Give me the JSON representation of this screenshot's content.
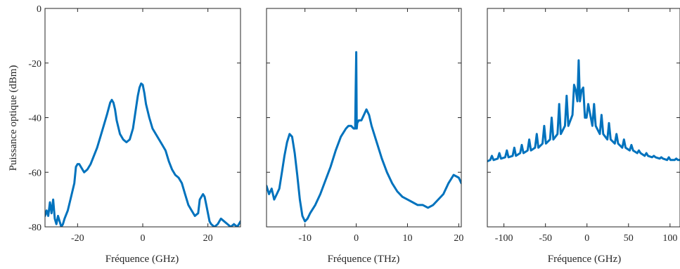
{
  "chart_data": [
    {
      "type": "line",
      "xlabel": "Fréquence (GHz)",
      "ylabel": "Puissance optique (dBm)",
      "xlim": [
        -30,
        30
      ],
      "ylim": [
        -80,
        0
      ],
      "xticks": [
        -20,
        0,
        20
      ],
      "xtick_labels": [
        "-20",
        "0",
        "20"
      ],
      "yticks": [
        -80,
        -60,
        -40,
        -20,
        0
      ],
      "ytick_labels": [
        "-80",
        "-60",
        "-40",
        "-20",
        "0"
      ],
      "grid": false,
      "color": "#0072BD",
      "series": [
        {
          "x": [
            -30,
            -29.5,
            -29,
            -28.5,
            -28,
            -27.5,
            -27,
            -26.5,
            -26,
            -25.5,
            -25,
            -24.5,
            -24,
            -23,
            -22,
            -21,
            -20.5,
            -20,
            -19.5,
            -19,
            -18,
            -17,
            -16,
            -15,
            -14,
            -13,
            -12,
            -11,
            -10,
            -9.5,
            -9,
            -8.5,
            -8,
            -7,
            -6,
            -5,
            -4,
            -3,
            -2.5,
            -2,
            -1.5,
            -1,
            -0.5,
            0,
            0.5,
            1,
            2,
            3,
            4,
            5,
            6,
            7,
            8,
            9,
            10,
            11,
            12,
            13,
            14,
            15,
            16,
            17,
            17.5,
            18,
            18.5,
            19,
            19.5,
            20,
            20.5,
            21,
            22,
            23,
            24,
            25,
            26,
            27,
            28,
            29,
            30
          ],
          "y": [
            -76,
            -74,
            -76,
            -71,
            -75,
            -70,
            -77,
            -79,
            -76,
            -78,
            -80,
            -79,
            -77,
            -74,
            -69,
            -64,
            -58,
            -57,
            -57,
            -58,
            -60,
            -59,
            -57,
            -54,
            -51,
            -47,
            -43,
            -39,
            -34.5,
            -33.5,
            -34.5,
            -37,
            -41,
            -46,
            -48,
            -49,
            -48,
            -44,
            -40,
            -36,
            -32,
            -29,
            -27.5,
            -28,
            -31,
            -35,
            -40,
            -44,
            -46,
            -48,
            -50,
            -52,
            -56,
            -59,
            -61,
            -62,
            -64,
            -68,
            -72,
            -74,
            -76,
            -75,
            -70,
            -69,
            -68,
            -69,
            -72,
            -75,
            -78,
            -79,
            -80,
            -79,
            -77,
            -78,
            -79,
            -80,
            -79,
            -80,
            -78
          ]
        }
      ]
    },
    {
      "type": "line",
      "xlabel": "Fréquence (THz)",
      "ylabel": "",
      "xlim": [
        -17.5,
        20.5
      ],
      "ylim": [
        -80,
        0
      ],
      "xticks": [
        -10,
        0,
        10,
        20
      ],
      "xtick_labels": [
        "-10",
        "0",
        "10",
        "20"
      ],
      "grid": false,
      "color": "#0072BD",
      "series": [
        {
          "x": [
            -17.5,
            -17,
            -16.5,
            -16,
            -15.5,
            -15,
            -14.5,
            -14,
            -13.5,
            -13,
            -12.5,
            -12,
            -11.5,
            -11,
            -10.5,
            -10,
            -9.5,
            -9,
            -8,
            -7,
            -6,
            -5,
            -4,
            -3,
            -2,
            -1.5,
            -1,
            -0.5,
            -0.2,
            -0.1,
            0,
            0.1,
            0.2,
            0.5,
            1,
            1.5,
            2,
            2.5,
            3,
            4,
            5,
            6,
            7,
            8,
            9,
            10,
            11,
            12,
            13,
            14,
            15,
            16,
            17,
            18,
            19,
            20,
            20.5
          ],
          "y": [
            -65,
            -68,
            -66,
            -70,
            -68,
            -66,
            -60,
            -54,
            -49,
            -46,
            -47,
            -53,
            -61,
            -70,
            -76,
            -78,
            -77,
            -75,
            -72,
            -68,
            -63,
            -58,
            -52,
            -47,
            -44,
            -43,
            -43,
            -44,
            -44,
            -30,
            -16,
            -44,
            -42,
            -41,
            -41,
            -39,
            -37,
            -39,
            -43,
            -49,
            -55,
            -60,
            -64,
            -67,
            -69,
            -70,
            -71,
            -72,
            -72,
            -73,
            -72,
            -70,
            -68,
            -64,
            -61,
            -62,
            -64
          ]
        }
      ]
    },
    {
      "type": "line",
      "xlabel": "Fréquence (GHz)",
      "ylabel": "",
      "xlim": [
        -120,
        112
      ],
      "ylim": [
        -80,
        0
      ],
      "xticks": [
        -100,
        -50,
        0,
        50,
        100
      ],
      "xtick_labels": [
        "-100",
        "-50",
        "0",
        "50",
        "100"
      ],
      "grid": false,
      "color": "#0072BD",
      "series": [
        {
          "x": [
            -120,
            -116.5,
            -114.5,
            -112.5,
            -107.5,
            -105.5,
            -103.5,
            -98.5,
            -96.5,
            -94.5,
            -89.5,
            -87.5,
            -85.5,
            -80.5,
            -78.5,
            -76.5,
            -71.5,
            -69.5,
            -67.5,
            -62.5,
            -60.5,
            -58.5,
            -53.5,
            -51.5,
            -49.5,
            -44.5,
            -42.5,
            -40.5,
            -35.5,
            -33.5,
            -31.5,
            -26.5,
            -24.5,
            -22.5,
            -17.5,
            -15.5,
            -13.5,
            -11.5,
            -10,
            -8.5,
            -6.5,
            -4.5,
            -2.5,
            -0.5,
            1.5,
            6.5,
            8.5,
            10.5,
            15.5,
            17.5,
            19.5,
            24.5,
            26.5,
            28.5,
            33.5,
            35.5,
            37.5,
            42.5,
            44.5,
            46.5,
            51.5,
            53.5,
            55.5,
            60.5,
            62.5,
            64.5,
            69.5,
            71.5,
            73.5,
            78.5,
            80.5,
            82.5,
            87.5,
            89.5,
            91.5,
            96.5,
            98.5,
            100.5,
            105.5,
            107.5,
            109.5,
            112
          ],
          "y": [
            -56,
            -55.5,
            -54,
            -55.5,
            -55,
            -53,
            -55,
            -54.5,
            -52,
            -54.5,
            -54,
            -51,
            -54,
            -53,
            -50,
            -53,
            -52,
            -48,
            -52,
            -51,
            -46,
            -51,
            -49.5,
            -43,
            -49.5,
            -48,
            -40,
            -48,
            -46,
            -35,
            -46,
            -43,
            -32,
            -43,
            -39,
            -28,
            -30,
            -34,
            -19,
            -34,
            -30,
            -29,
            -40,
            -40,
            -35,
            -43,
            -35,
            -43,
            -46,
            -39,
            -46,
            -48,
            -42,
            -48,
            -49.5,
            -46,
            -49.5,
            -51,
            -48,
            -51,
            -52,
            -50,
            -52,
            -53,
            -52,
            -53,
            -54,
            -53,
            -54,
            -54.5,
            -54,
            -54.5,
            -55,
            -54.5,
            -55,
            -55.5,
            -54.5,
            -55.5,
            -55.5,
            -55,
            -55.5,
            -55.5
          ]
        }
      ]
    }
  ]
}
